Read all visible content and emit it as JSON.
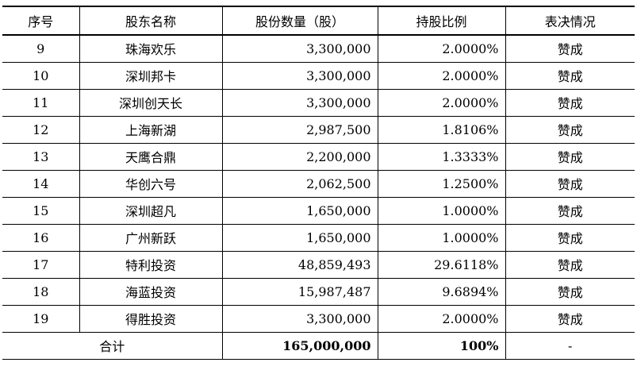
{
  "table": {
    "headers": [
      "序号",
      "股东名称",
      "股份数量（股）",
      "持股比例",
      "表决情况"
    ],
    "rows": [
      {
        "no": "9",
        "name": "珠海欢乐",
        "shares": "3,300,000",
        "ratio": "2.0000%",
        "vote": "赞成"
      },
      {
        "no": "10",
        "name": "深圳邦卡",
        "shares": "3,300,000",
        "ratio": "2.0000%",
        "vote": "赞成"
      },
      {
        "no": "11",
        "name": "深圳创天长",
        "shares": "3,300,000",
        "ratio": "2.0000%",
        "vote": "赞成"
      },
      {
        "no": "12",
        "name": "上海新湖",
        "shares": "2,987,500",
        "ratio": "1.8106%",
        "vote": "赞成"
      },
      {
        "no": "13",
        "name": "天鹰合鼎",
        "shares": "2,200,000",
        "ratio": "1.3333%",
        "vote": "赞成"
      },
      {
        "no": "14",
        "name": "华创六号",
        "shares": "2,062,500",
        "ratio": "1.2500%",
        "vote": "赞成"
      },
      {
        "no": "15",
        "name": "深圳超凡",
        "shares": "1,650,000",
        "ratio": "1.0000%",
        "vote": "赞成"
      },
      {
        "no": "16",
        "name": "广州新跃",
        "shares": "1,650,000",
        "ratio": "1.0000%",
        "vote": "赞成"
      },
      {
        "no": "17",
        "name": "特利投资",
        "shares": "48,859,493",
        "ratio": "29.6118%",
        "vote": "赞成"
      },
      {
        "no": "18",
        "name": "海蓝投资",
        "shares": "15,987,487",
        "ratio": "9.6894%",
        "vote": "赞成"
      },
      {
        "no": "19",
        "name": "得胜投资",
        "shares": "3,300,000",
        "ratio": "2.0000%",
        "vote": "赞成"
      }
    ],
    "total": {
      "label": "合计",
      "shares": "165,000,000",
      "ratio": "100%",
      "vote": "-"
    }
  }
}
